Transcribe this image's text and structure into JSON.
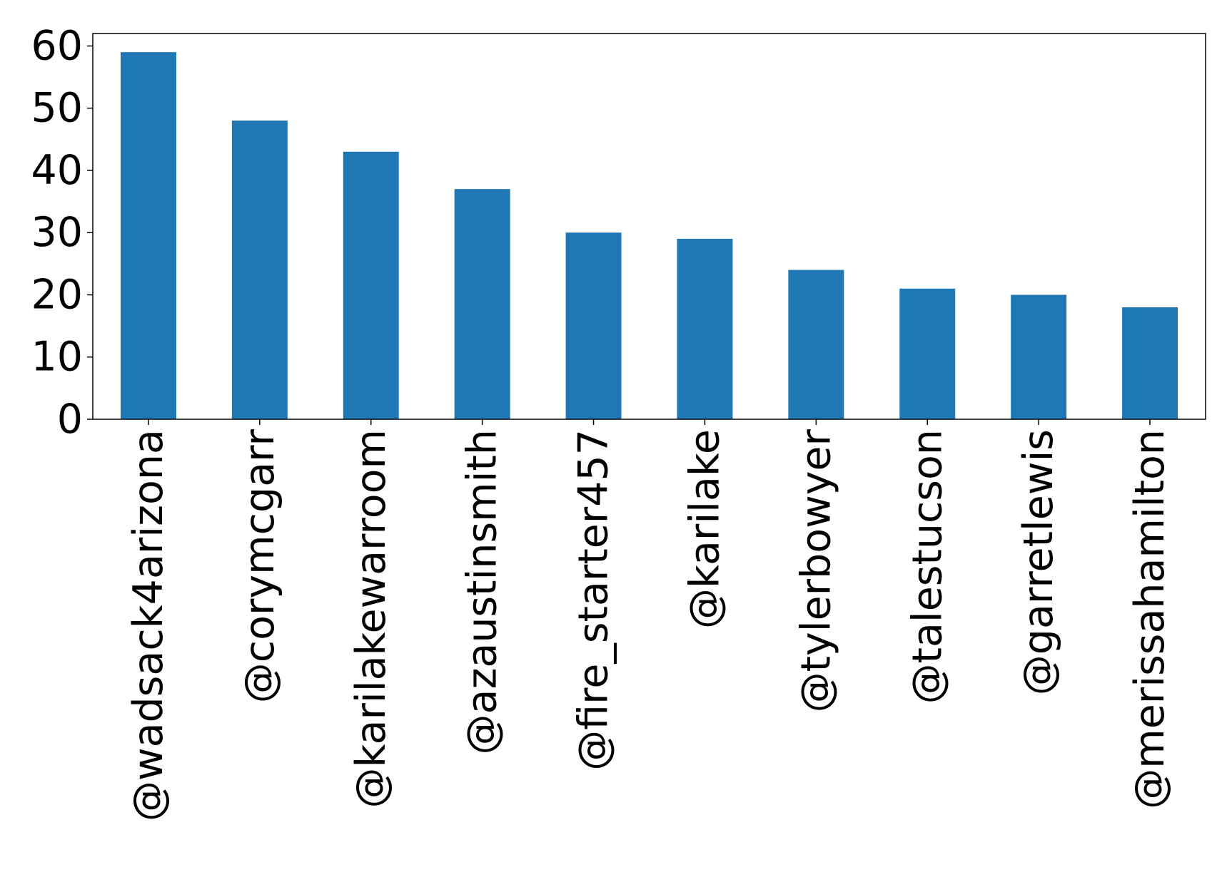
{
  "chart_data": {
    "type": "bar",
    "categories": [
      "@wadsack4arizona",
      "@corymcgarr",
      "@karilakewarroom",
      "@azaustinsmith",
      "@fire_starter457",
      "@karilake",
      "@tylerbowyer",
      "@talestucson",
      "@garretlewis",
      "@merissahamilton"
    ],
    "values": [
      59,
      48,
      43,
      37,
      30,
      29,
      24,
      21,
      20,
      18
    ],
    "yticks": [
      0,
      10,
      20,
      30,
      40,
      50,
      60
    ],
    "ylim": [
      0,
      62
    ],
    "title": "",
    "xlabel": "",
    "ylabel": "",
    "grid": false,
    "bar_color": "#1f77b4"
  }
}
